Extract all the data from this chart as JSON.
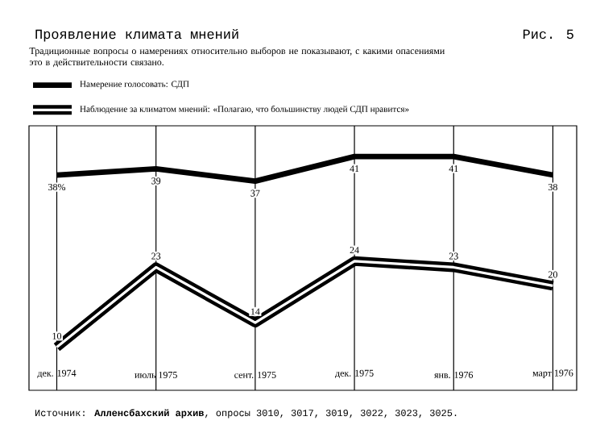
{
  "chart_data": {
    "type": "line",
    "title": "Проявление климата мнений",
    "subtitle": "Традиционные вопросы о намерениях относительно выборов не показывают, с какими опасениями это в действительности связано.",
    "annotations": [
      "Рис. 5",
      "Источник: **Алленсбахский архив**, опросы 3010, 3017, 3019, 3022, 3023, 3025."
    ],
    "categories": [
      "дек. 1974",
      "июль 1975",
      "сент. 1975",
      "дек. 1975",
      "янв. 1976",
      "март 1976"
    ],
    "series": [
      {
        "name": "Намерение голосовать: СДП",
        "color": "#000000",
        "values": [
          38,
          39,
          37,
          41,
          41,
          38
        ],
        "value_labels": [
          "38%",
          "39",
          "37",
          "41",
          "41",
          "38"
        ]
      },
      {
        "name": "Наблюдение за климатом мнений: «Полагаю, что большинству людей СДП нравится»",
        "color": "#ffffff",
        "values": [
          10,
          23,
          14,
          24,
          23,
          20
        ],
        "value_labels": [
          "10",
          "23",
          "14",
          "24",
          "23",
          "20"
        ]
      }
    ],
    "grid": "x",
    "legend": "top",
    "marker": "none",
    "line_style": "solid"
  }
}
